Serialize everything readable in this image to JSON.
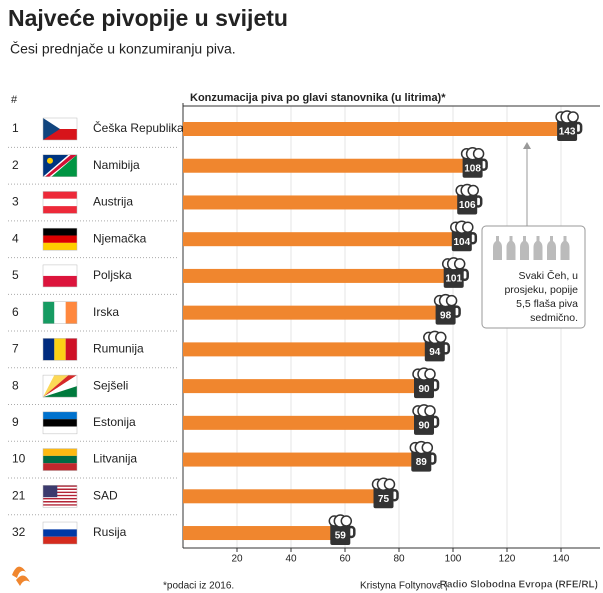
{
  "chart_data": {
    "type": "bar",
    "title": "Najveće pivopije u svijetu",
    "subtitle": "Česi prednjače u konzumiranju piva.",
    "rank_header": "#",
    "x_label": "Konzumacija piva po glavi stanovnika (u litrima)*",
    "ranks": [
      "1",
      "2",
      "3",
      "4",
      "5",
      "6",
      "7",
      "8",
      "9",
      "10",
      "21",
      "32"
    ],
    "categories": [
      "Češka Republika",
      "Namibija",
      "Austrija",
      "Njemačka",
      "Poljska",
      "Irska",
      "Rumunija",
      "Sejšeli",
      "Estonija",
      "Litvanija",
      "SAD",
      "Rusija"
    ],
    "values": [
      143,
      108,
      106,
      104,
      101,
      98,
      94,
      90,
      90,
      89,
      75,
      59
    ],
    "color": "#f0862e",
    "xlim": [
      0,
      155
    ],
    "xticks": [
      20,
      40,
      60,
      80,
      100,
      120,
      140
    ],
    "grid": true,
    "annotation": [
      "Svaki Čeh, u",
      "prosjeku, popije",
      "5,5 flaša piva",
      "sedmično."
    ],
    "footnote": "*podaci iz 2016.",
    "credit": "Kristyna Foltynova |Iz",
    "source": "Radio Slobodna Evropa (RFE/RL)"
  }
}
